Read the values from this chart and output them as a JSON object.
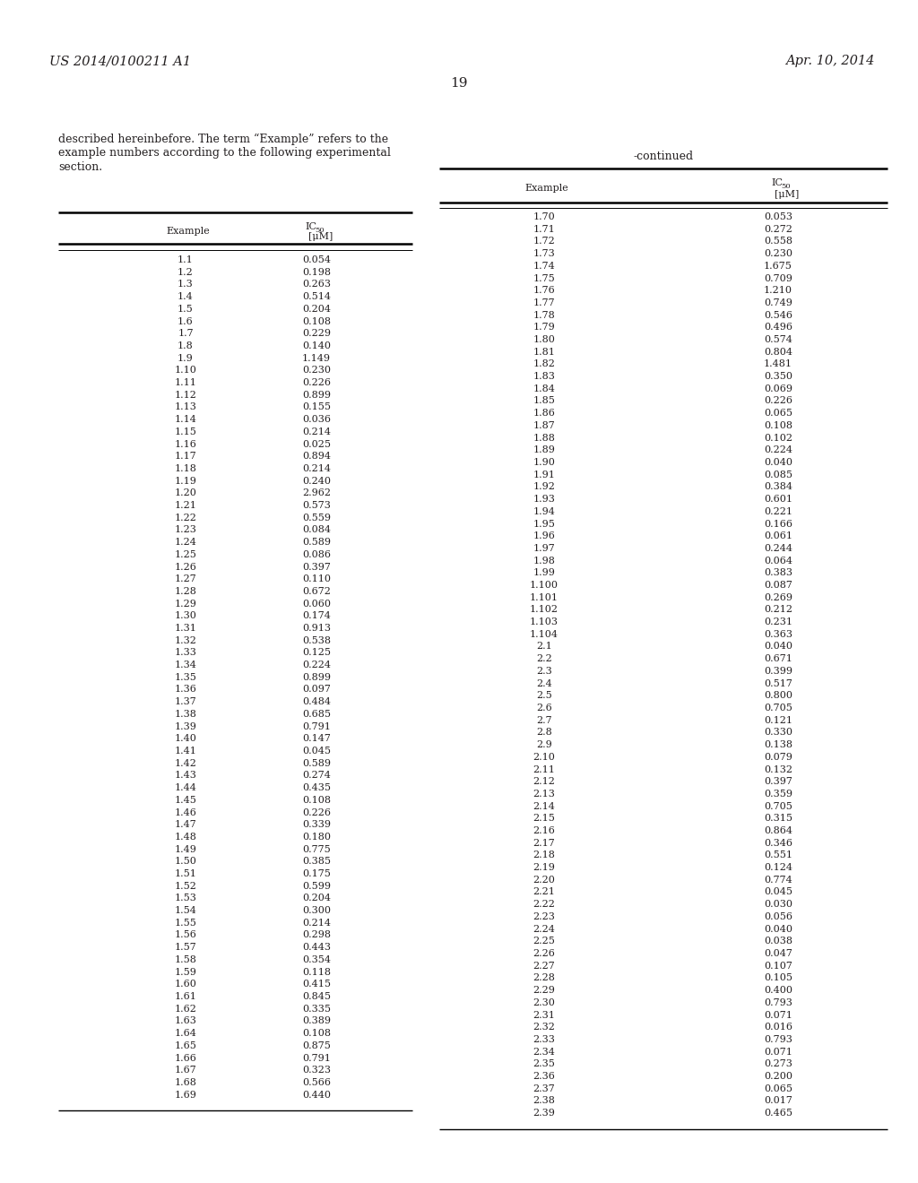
{
  "patent_number": "US 2014/0100211 A1",
  "date": "Apr. 10, 2014",
  "page_number": "19",
  "body_text_lines": [
    "described hereinbefore. The term “Example” refers to the",
    "example numbers according to the following experimental",
    "section."
  ],
  "continued_label": "-continued",
  "left_table_rows": [
    [
      "1.1",
      "0.054"
    ],
    [
      "1.2",
      "0.198"
    ],
    [
      "1.3",
      "0.263"
    ],
    [
      "1.4",
      "0.514"
    ],
    [
      "1.5",
      "0.204"
    ],
    [
      "1.6",
      "0.108"
    ],
    [
      "1.7",
      "0.229"
    ],
    [
      "1.8",
      "0.140"
    ],
    [
      "1.9",
      "1.149"
    ],
    [
      "1.10",
      "0.230"
    ],
    [
      "1.11",
      "0.226"
    ],
    [
      "1.12",
      "0.899"
    ],
    [
      "1.13",
      "0.155"
    ],
    [
      "1.14",
      "0.036"
    ],
    [
      "1.15",
      "0.214"
    ],
    [
      "1.16",
      "0.025"
    ],
    [
      "1.17",
      "0.894"
    ],
    [
      "1.18",
      "0.214"
    ],
    [
      "1.19",
      "0.240"
    ],
    [
      "1.20",
      "2.962"
    ],
    [
      "1.21",
      "0.573"
    ],
    [
      "1.22",
      "0.559"
    ],
    [
      "1.23",
      "0.084"
    ],
    [
      "1.24",
      "0.589"
    ],
    [
      "1.25",
      "0.086"
    ],
    [
      "1.26",
      "0.397"
    ],
    [
      "1.27",
      "0.110"
    ],
    [
      "1.28",
      "0.672"
    ],
    [
      "1.29",
      "0.060"
    ],
    [
      "1.30",
      "0.174"
    ],
    [
      "1.31",
      "0.913"
    ],
    [
      "1.32",
      "0.538"
    ],
    [
      "1.33",
      "0.125"
    ],
    [
      "1.34",
      "0.224"
    ],
    [
      "1.35",
      "0.899"
    ],
    [
      "1.36",
      "0.097"
    ],
    [
      "1.37",
      "0.484"
    ],
    [
      "1.38",
      "0.685"
    ],
    [
      "1.39",
      "0.791"
    ],
    [
      "1.40",
      "0.147"
    ],
    [
      "1.41",
      "0.045"
    ],
    [
      "1.42",
      "0.589"
    ],
    [
      "1.43",
      "0.274"
    ],
    [
      "1.44",
      "0.435"
    ],
    [
      "1.45",
      "0.108"
    ],
    [
      "1.46",
      "0.226"
    ],
    [
      "1.47",
      "0.339"
    ],
    [
      "1.48",
      "0.180"
    ],
    [
      "1.49",
      "0.775"
    ],
    [
      "1.50",
      "0.385"
    ],
    [
      "1.51",
      "0.175"
    ],
    [
      "1.52",
      "0.599"
    ],
    [
      "1.53",
      "0.204"
    ],
    [
      "1.54",
      "0.300"
    ],
    [
      "1.55",
      "0.214"
    ],
    [
      "1.56",
      "0.298"
    ],
    [
      "1.57",
      "0.443"
    ],
    [
      "1.58",
      "0.354"
    ],
    [
      "1.59",
      "0.118"
    ],
    [
      "1.60",
      "0.415"
    ],
    [
      "1.61",
      "0.845"
    ],
    [
      "1.62",
      "0.335"
    ],
    [
      "1.63",
      "0.389"
    ],
    [
      "1.64",
      "0.108"
    ],
    [
      "1.65",
      "0.875"
    ],
    [
      "1.66",
      "0.791"
    ],
    [
      "1.67",
      "0.323"
    ],
    [
      "1.68",
      "0.566"
    ],
    [
      "1.69",
      "0.440"
    ]
  ],
  "right_table_rows": [
    [
      "1.70",
      "0.053"
    ],
    [
      "1.71",
      "0.272"
    ],
    [
      "1.72",
      "0.558"
    ],
    [
      "1.73",
      "0.230"
    ],
    [
      "1.74",
      "1.675"
    ],
    [
      "1.75",
      "0.709"
    ],
    [
      "1.76",
      "1.210"
    ],
    [
      "1.77",
      "0.749"
    ],
    [
      "1.78",
      "0.546"
    ],
    [
      "1.79",
      "0.496"
    ],
    [
      "1.80",
      "0.574"
    ],
    [
      "1.81",
      "0.804"
    ],
    [
      "1.82",
      "1.481"
    ],
    [
      "1.83",
      "0.350"
    ],
    [
      "1.84",
      "0.069"
    ],
    [
      "1.85",
      "0.226"
    ],
    [
      "1.86",
      "0.065"
    ],
    [
      "1.87",
      "0.108"
    ],
    [
      "1.88",
      "0.102"
    ],
    [
      "1.89",
      "0.224"
    ],
    [
      "1.90",
      "0.040"
    ],
    [
      "1.91",
      "0.085"
    ],
    [
      "1.92",
      "0.384"
    ],
    [
      "1.93",
      "0.601"
    ],
    [
      "1.94",
      "0.221"
    ],
    [
      "1.95",
      "0.166"
    ],
    [
      "1.96",
      "0.061"
    ],
    [
      "1.97",
      "0.244"
    ],
    [
      "1.98",
      "0.064"
    ],
    [
      "1.99",
      "0.383"
    ],
    [
      "1.100",
      "0.087"
    ],
    [
      "1.101",
      "0.269"
    ],
    [
      "1.102",
      "0.212"
    ],
    [
      "1.103",
      "0.231"
    ],
    [
      "1.104",
      "0.363"
    ],
    [
      "2.1",
      "0.040"
    ],
    [
      "2.2",
      "0.671"
    ],
    [
      "2.3",
      "0.399"
    ],
    [
      "2.4",
      "0.517"
    ],
    [
      "2.5",
      "0.800"
    ],
    [
      "2.6",
      "0.705"
    ],
    [
      "2.7",
      "0.121"
    ],
    [
      "2.8",
      "0.330"
    ],
    [
      "2.9",
      "0.138"
    ],
    [
      "2.10",
      "0.079"
    ],
    [
      "2.11",
      "0.132"
    ],
    [
      "2.12",
      "0.397"
    ],
    [
      "2.13",
      "0.359"
    ],
    [
      "2.14",
      "0.705"
    ],
    [
      "2.15",
      "0.315"
    ],
    [
      "2.16",
      "0.864"
    ],
    [
      "2.17",
      "0.346"
    ],
    [
      "2.18",
      "0.551"
    ],
    [
      "2.19",
      "0.124"
    ],
    [
      "2.20",
      "0.774"
    ],
    [
      "2.21",
      "0.045"
    ],
    [
      "2.22",
      "0.030"
    ],
    [
      "2.23",
      "0.056"
    ],
    [
      "2.24",
      "0.040"
    ],
    [
      "2.25",
      "0.038"
    ],
    [
      "2.26",
      "0.047"
    ],
    [
      "2.27",
      "0.107"
    ],
    [
      "2.28",
      "0.105"
    ],
    [
      "2.29",
      "0.400"
    ],
    [
      "2.30",
      "0.793"
    ],
    [
      "2.31",
      "0.071"
    ],
    [
      "2.32",
      "0.016"
    ],
    [
      "2.33",
      "0.793"
    ],
    [
      "2.34",
      "0.071"
    ],
    [
      "2.35",
      "0.273"
    ],
    [
      "2.36",
      "0.200"
    ],
    [
      "2.37",
      "0.065"
    ],
    [
      "2.38",
      "0.017"
    ],
    [
      "2.39",
      "0.465"
    ]
  ],
  "bg_color": "#ffffff",
  "text_color": "#231f20",
  "font_size_body": 9.0,
  "font_size_table_data": 8.0,
  "font_size_header_text": 9.5,
  "font_size_patent": 10.5,
  "font_size_page": 11.0
}
